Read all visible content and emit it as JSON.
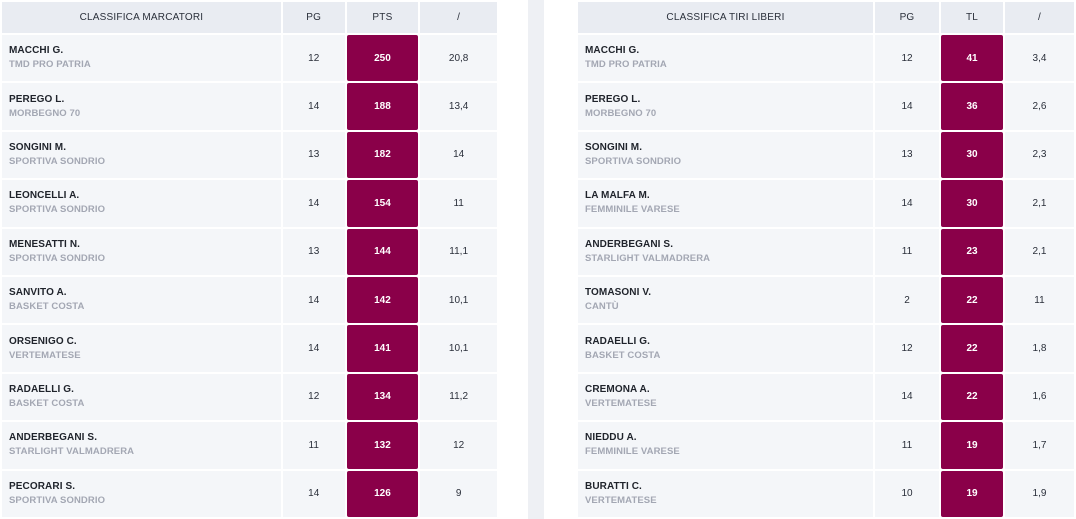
{
  "scorers": {
    "headers": [
      "CLASSIFICA MARCATORI",
      "PG",
      "PTS",
      "/"
    ],
    "rows": [
      {
        "player": "MACCHI G.",
        "team": "TMD PRO PATRIA",
        "pg": "12",
        "value": "250",
        "avg": "20,8"
      },
      {
        "player": "PEREGO L.",
        "team": "MORBEGNO 70",
        "pg": "14",
        "value": "188",
        "avg": "13,4"
      },
      {
        "player": "SONGINI M.",
        "team": "SPORTIVA SONDRIO",
        "pg": "13",
        "value": "182",
        "avg": "14"
      },
      {
        "player": "LEONCELLI A.",
        "team": "SPORTIVA SONDRIO",
        "pg": "14",
        "value": "154",
        "avg": "11"
      },
      {
        "player": "MENESATTI N.",
        "team": "SPORTIVA SONDRIO",
        "pg": "13",
        "value": "144",
        "avg": "11,1"
      },
      {
        "player": "SANVITO A.",
        "team": "BASKET COSTA",
        "pg": "14",
        "value": "142",
        "avg": "10,1"
      },
      {
        "player": "ORSENIGO C.",
        "team": "VERTEMATESE",
        "pg": "14",
        "value": "141",
        "avg": "10,1"
      },
      {
        "player": "RADAELLI G.",
        "team": "BASKET COSTA",
        "pg": "12",
        "value": "134",
        "avg": "11,2"
      },
      {
        "player": "ANDERBEGANI S.",
        "team": "STARLIGHT VALMADRERA",
        "pg": "11",
        "value": "132",
        "avg": "12"
      },
      {
        "player": "PECORARI S.",
        "team": "SPORTIVA SONDRIO",
        "pg": "14",
        "value": "126",
        "avg": "9"
      }
    ]
  },
  "free_throws": {
    "headers": [
      "CLASSIFICA TIRI LIBERI",
      "PG",
      "TL",
      "/"
    ],
    "rows": [
      {
        "player": "MACCHI G.",
        "team": "TMD PRO PATRIA",
        "pg": "12",
        "value": "41",
        "avg": "3,4"
      },
      {
        "player": "PEREGO L.",
        "team": "MORBEGNO 70",
        "pg": "14",
        "value": "36",
        "avg": "2,6"
      },
      {
        "player": "SONGINI M.",
        "team": "SPORTIVA SONDRIO",
        "pg": "13",
        "value": "30",
        "avg": "2,3"
      },
      {
        "player": "LA MALFA M.",
        "team": "FEMMINILE VARESE",
        "pg": "14",
        "value": "30",
        "avg": "2,1"
      },
      {
        "player": "ANDERBEGANI S.",
        "team": "STARLIGHT VALMADRERA",
        "pg": "11",
        "value": "23",
        "avg": "2,1"
      },
      {
        "player": "TOMASONI V.",
        "team": "CANTÙ",
        "pg": "2",
        "value": "22",
        "avg": "11"
      },
      {
        "player": "RADAELLI G.",
        "team": "BASKET COSTA",
        "pg": "12",
        "value": "22",
        "avg": "1,8"
      },
      {
        "player": "CREMONA A.",
        "team": "VERTEMATESE",
        "pg": "14",
        "value": "22",
        "avg": "1,6"
      },
      {
        "player": "NIEDDU A.",
        "team": "FEMMINILE VARESE",
        "pg": "11",
        "value": "19",
        "avg": "1,7"
      },
      {
        "player": "BURATTI C.",
        "team": "VERTEMATESE",
        "pg": "10",
        "value": "19",
        "avg": "1,9"
      }
    ]
  },
  "colors": {
    "highlight": "#8a0049",
    "header_bg": "#e9ecf2",
    "row_bg": "#f4f6f9",
    "team_text": "#a3a7b3"
  }
}
